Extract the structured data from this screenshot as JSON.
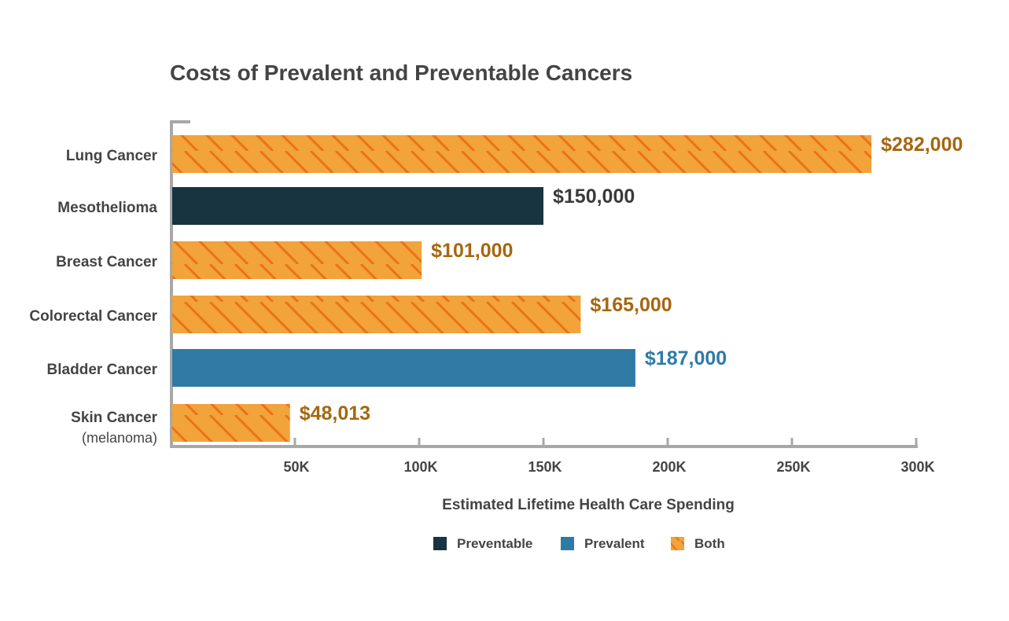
{
  "chart_data": {
    "type": "bar",
    "orientation": "horizontal",
    "title": "Costs of Prevalent and Preventable Cancers",
    "xlabel": "Estimated Lifetime Health Care Spending",
    "ylabel": "",
    "xlim": [
      0,
      300000
    ],
    "x_ticks": [
      50000,
      100000,
      150000,
      200000,
      250000,
      300000
    ],
    "x_tick_labels": [
      "50K",
      "100K",
      "150K",
      "200K",
      "250K",
      "300K"
    ],
    "grid": false,
    "legend_position": "bottom",
    "categories": [
      {
        "label": "Lung Cancer",
        "sublabel": ""
      },
      {
        "label": "Mesothelioma",
        "sublabel": ""
      },
      {
        "label": "Breast Cancer",
        "sublabel": ""
      },
      {
        "label": "Colorectal Cancer",
        "sublabel": ""
      },
      {
        "label": "Bladder Cancer",
        "sublabel": ""
      },
      {
        "label": "Skin Cancer",
        "sublabel": "(melanoma)"
      }
    ],
    "values": [
      282000,
      150000,
      101000,
      165000,
      187000,
      48013
    ],
    "value_labels": [
      "$282,000",
      "$150,000",
      "$101,000",
      "$165,000",
      "$187,000",
      "$48,013"
    ],
    "groups": [
      "Both",
      "Preventable",
      "Both",
      "Both",
      "Prevalent",
      "Both"
    ],
    "legend": [
      {
        "name": "Preventable",
        "color": "#183441",
        "pattern": "solid"
      },
      {
        "name": "Prevalent",
        "color": "#2F7BA6",
        "pattern": "solid"
      },
      {
        "name": "Both",
        "color": "#F2A33A",
        "pattern": "hatched",
        "stripe_color": "#E8731A"
      }
    ],
    "label_colors": {
      "Both": "#A5670F",
      "Preventable": "#3A3A3A",
      "Prevalent": "#2F7BA6"
    }
  }
}
